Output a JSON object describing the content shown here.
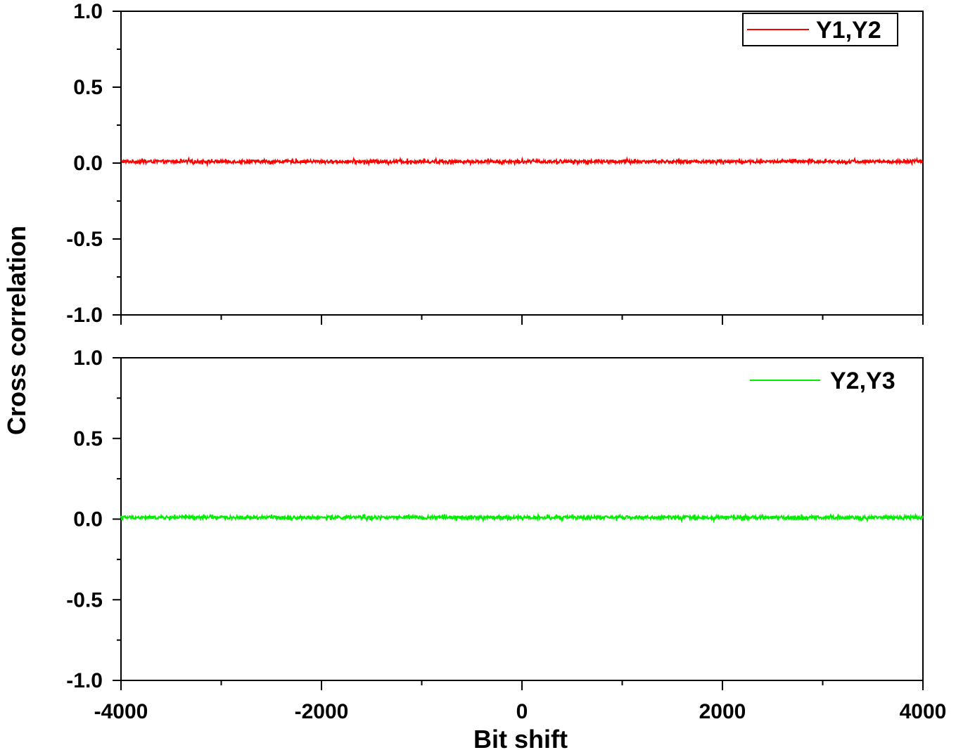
{
  "ylabel": "Cross correlation",
  "xlabel": "Bit shift",
  "chart_data": [
    {
      "type": "line",
      "panel": "top",
      "series": [
        {
          "name": "Y1,Y2",
          "color": "#ff0000",
          "mean": 0.01,
          "noise_amplitude": 0.02,
          "n_points": 1600
        }
      ],
      "xlim": [
        -4000,
        4000
      ],
      "ylim": [
        -1.0,
        1.0
      ],
      "yticks": [
        "1.0",
        "0.5",
        "0.0",
        "-0.5",
        "-1.0"
      ],
      "xticks": [],
      "legend": {
        "position": "top-right",
        "boxed": true
      }
    },
    {
      "type": "line",
      "panel": "bottom",
      "series": [
        {
          "name": "Y2,Y3",
          "color": "#00ee00",
          "mean": 0.01,
          "noise_amplitude": 0.02,
          "n_points": 1600
        }
      ],
      "xlim": [
        -4000,
        4000
      ],
      "ylim": [
        -1.0,
        1.0
      ],
      "yticks": [
        "1.0",
        "0.5",
        "0.0",
        "-0.5",
        "-1.0"
      ],
      "xticks": [
        "-4000",
        "-2000",
        "0",
        "2000",
        "4000"
      ],
      "legend": {
        "position": "top-right",
        "boxed": false
      }
    }
  ]
}
